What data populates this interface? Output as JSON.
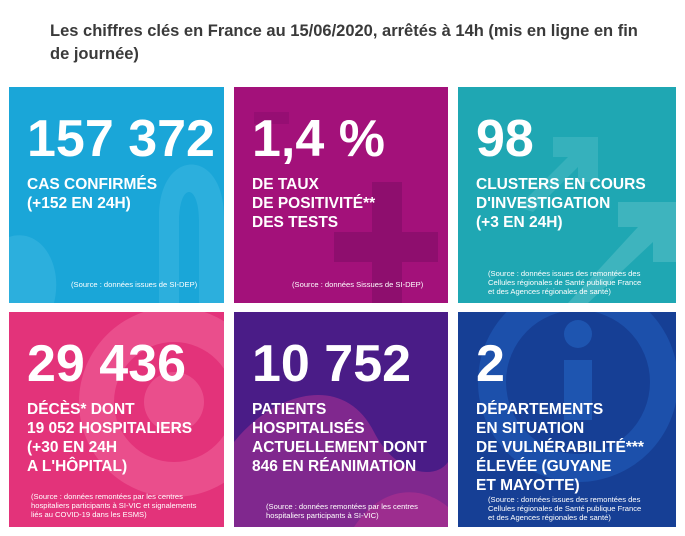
{
  "header": {
    "title": "Les chiffres clés en France au 15/06/2020, arrêtés à 14h (mis en ligne en fin de journée)"
  },
  "tiles": [
    {
      "number": "157 372",
      "lines": [
        "CAS CONFIRMÉS",
        "(+152 EN 24H)"
      ],
      "source": "(Source : données issues de SI-DEP)",
      "color": "#1aa6d8"
    },
    {
      "number": "1,4 %",
      "lines": [
        "DE TAUX",
        "DE POSITIVITÉ**",
        "DES TESTS"
      ],
      "source": "(Source : données Sissues de SI-DEP)",
      "color": "#a3117a"
    },
    {
      "number": "98",
      "lines": [
        "CLUSTERS EN COURS",
        "D'INVESTIGATION",
        "(+3 EN 24H)"
      ],
      "source_lines": [
        "(Source : données issues des remontées des",
        "Cellules régionales de Santé publique France",
        "et des Agences régionales de santé)"
      ],
      "color": "#1fa7b3"
    },
    {
      "number": "29 436",
      "lines": [
        "DÉCÈS* DONT",
        "19 052 HOSPITALIERS",
        "(+30 EN 24H",
        "A L'HÔPITAL)"
      ],
      "source_lines": [
        "(Source : données remontées par les centres",
        "hospitaliers participants à SI-VIC et signalements",
        "liés au COVID-19 dans les ESMS)"
      ],
      "color": "#e3337a"
    },
    {
      "number": "10 752",
      "lines": [
        "PATIENTS",
        "HOSPITALISÉS",
        "ACTUELLEMENT DONT",
        "846 EN RÉANIMATION"
      ],
      "source_lines": [
        "(Source : données remontées par les centres",
        "hospitaliers participants à SI-VIC)"
      ],
      "color": "#4a1c87"
    },
    {
      "number": "2",
      "lines": [
        "DÉPARTEMENTS",
        "EN SITUATION",
        "DE VULNÉRABILITÉ***",
        "ÉLEVÉE (GUYANE",
        "ET MAYOTTE)"
      ],
      "source_lines": [
        "(Source : données issues des remontées des",
        "Cellules régionales de Santé publique France",
        "et des Agences régionales de santé)"
      ],
      "color": "#163f95"
    }
  ]
}
